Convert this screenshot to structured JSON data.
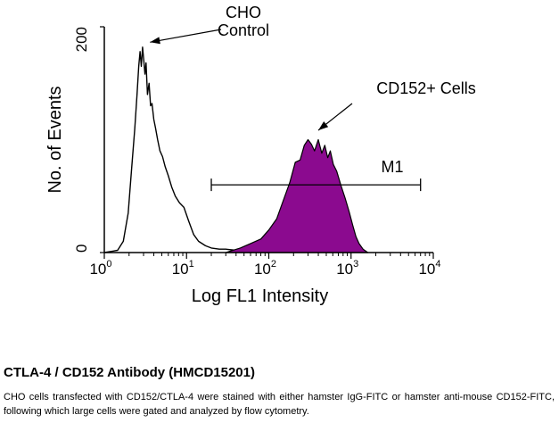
{
  "chart_data": {
    "type": "area",
    "xlabel": "Log FL1 Intensity",
    "ylabel": "No. of Events",
    "x_scale": "log",
    "xlim": [
      1,
      10000
    ],
    "ylim": [
      0,
      200
    ],
    "x_ticks": [
      {
        "value": 1,
        "base": "10",
        "exp": "0"
      },
      {
        "value": 10,
        "base": "10",
        "exp": "1"
      },
      {
        "value": 100,
        "base": "10",
        "exp": "2"
      },
      {
        "value": 1000,
        "base": "10",
        "exp": "3"
      },
      {
        "value": 10000,
        "base": "10",
        "exp": "4"
      }
    ],
    "y_ticks": [
      0,
      200
    ],
    "series": [
      {
        "name": "CHO Control",
        "style": "outline",
        "color": "#000000",
        "x": [
          1.0,
          1.45,
          1.7,
          1.95,
          2.15,
          2.35,
          2.5,
          2.62,
          2.72,
          2.82,
          2.92,
          3.02,
          3.12,
          3.22,
          3.35,
          3.5,
          3.65,
          3.8,
          4.0,
          4.2,
          4.45,
          4.75,
          5.1,
          5.5,
          6.0,
          6.6,
          7.3,
          8.2,
          9.3,
          10.6,
          12.2,
          14.0,
          17.0,
          20.0,
          25.0,
          30.0,
          40.0,
          60.0,
          100.0
        ],
        "y": [
          0,
          2,
          10,
          35,
          75,
          110,
          140,
          165,
          178,
          165,
          182,
          170,
          158,
          168,
          140,
          150,
          130,
          132,
          118,
          110,
          100,
          90,
          85,
          76,
          68,
          58,
          50,
          44,
          40,
          28,
          16,
          10,
          6,
          4,
          3,
          3,
          2,
          1,
          0
        ]
      },
      {
        "name": "CD152+ Cells",
        "style": "filled",
        "color": "#8b0a8f",
        "x": [
          30.0,
          45.0,
          60.0,
          80.0,
          100.0,
          125.0,
          150.0,
          180.0,
          210.0,
          240.0,
          270.0,
          300.0,
          330.0,
          360.0,
          400.0,
          440.0,
          480.0,
          520.0,
          560.0,
          610.0,
          670.0,
          750.0,
          850.0,
          950.0,
          1050.0,
          1150.0,
          1250.0,
          1400.0,
          1600.0
        ],
        "y": [
          0,
          4,
          8,
          12,
          20,
          30,
          46,
          62,
          80,
          82,
          95,
          100,
          96,
          90,
          100,
          88,
          95,
          84,
          90,
          78,
          72,
          60,
          48,
          36,
          24,
          14,
          8,
          3,
          0
        ]
      }
    ],
    "gate": {
      "label": "M1",
      "x_start": 20,
      "x_end": 7000,
      "y": 60
    },
    "annotations": [
      {
        "text_lines": [
          "CHO",
          "Control"
        ],
        "target_x": 3.6,
        "target_y": 180
      },
      {
        "text_lines": [
          "CD152+ Cells"
        ],
        "target_x": 400,
        "target_y": 102
      }
    ]
  },
  "caption": {
    "title": "CTLA-4 / CD152 Antibody (HMCD15201)",
    "body": "CHO cells transfected with CD152/CTLA-4 were stained with either hamster IgG-FITC or hamster anti-mouse CD152-FITC, following which large cells were gated and analyzed by flow cytometry."
  }
}
